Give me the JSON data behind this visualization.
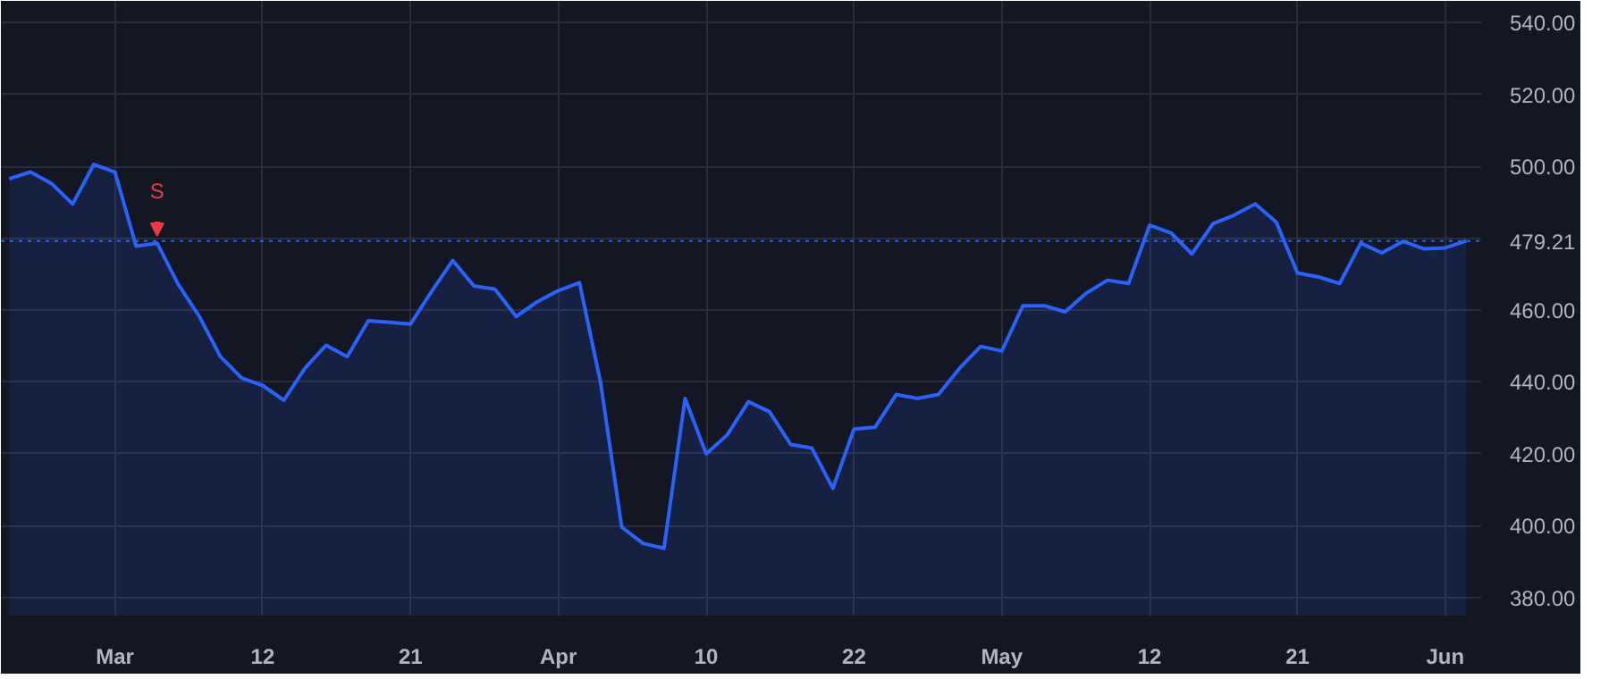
{
  "chart_data": {
    "type": "area",
    "categories": [
      null,
      null,
      null,
      null,
      null,
      "Mar",
      null,
      null,
      null,
      null,
      null,
      null,
      "12",
      null,
      null,
      null,
      null,
      null,
      null,
      "21",
      null,
      null,
      null,
      null,
      null,
      null,
      "Apr",
      null,
      null,
      null,
      null,
      null,
      null,
      "10",
      null,
      null,
      null,
      null,
      null,
      null,
      "22",
      null,
      null,
      null,
      null,
      null,
      null,
      "May",
      null,
      null,
      null,
      null,
      null,
      null,
      "12",
      null,
      null,
      null,
      null,
      null,
      null,
      "21",
      null,
      null,
      null,
      null,
      null,
      null,
      "Jun",
      null
    ],
    "series": [
      {
        "color": "#2962ff",
        "values": [
          496.5,
          498.4,
          495.2,
          489.5,
          500.5,
          498.4,
          477.8,
          478.6,
          467.1,
          458.2,
          447.0,
          441.1,
          439.0,
          434.9,
          443.8,
          450.2,
          447.0,
          457.0,
          456.6,
          456.1,
          465.2,
          473.8,
          466.7,
          465.8,
          458.2,
          462.3,
          465.4,
          467.6,
          439.8,
          399.6,
          395.1,
          393.7,
          435.4,
          420.0,
          425.3,
          434.5,
          431.7,
          422.6,
          421.6,
          410.4,
          426.9,
          427.4,
          436.5,
          435.4,
          436.5,
          443.8,
          449.9,
          448.6,
          461.2,
          461.2,
          459.5,
          464.7,
          468.3,
          467.4,
          483.6,
          481.5,
          475.6,
          484.0,
          486.4,
          489.5,
          484.4,
          470.3,
          469.2,
          467.4,
          478.6,
          475.9,
          479.1,
          477.0,
          477.3,
          479.21
        ]
      }
    ],
    "ylim": [
      375,
      546
    ],
    "yticks": [
      {
        "value": 380,
        "label": "380.00"
      },
      {
        "value": 400,
        "label": "400.00"
      },
      {
        "value": 420,
        "label": "420.00"
      },
      {
        "value": 440,
        "label": "440.00"
      },
      {
        "value": 460,
        "label": "460.00"
      },
      {
        "value": 480,
        "label": null
      },
      {
        "value": 500,
        "label": "500.00"
      },
      {
        "value": 520,
        "label": "520.00"
      },
      {
        "value": 540,
        "label": "540.00"
      }
    ],
    "ref_lines": [
      {
        "axis": "y",
        "value": 479.21,
        "label": "479.21",
        "color": "#2962ff",
        "line_style": "dotted"
      }
    ],
    "annotations": [
      {
        "text": "S",
        "y": 478.6
      }
    ],
    "grid": true
  }
}
